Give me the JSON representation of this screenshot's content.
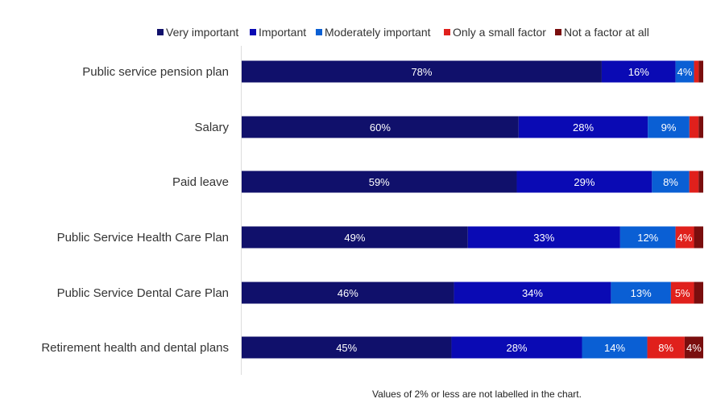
{
  "chart_data": {
    "type": "bar",
    "orientation": "horizontal",
    "stacked": true,
    "unit": "%",
    "xlim": [
      0,
      100
    ],
    "grid": false,
    "legend_position": "top",
    "categories": [
      "Public service pension plan",
      "Salary",
      "Paid leave",
      "Public Service Health Care Plan",
      "Public Service Dental Care Plan",
      "Retirement health and dental plans"
    ],
    "series": [
      {
        "name": "Very important",
        "color": "#10106b",
        "values": [
          78,
          60,
          59,
          49,
          46,
          45
        ]
      },
      {
        "name": "Important",
        "color": "#0a0ab4",
        "values": [
          16,
          28,
          29,
          33,
          34,
          28
        ]
      },
      {
        "name": "Moderately important",
        "color": "#0a5fd4",
        "values": [
          4,
          9,
          8,
          12,
          13,
          14
        ]
      },
      {
        "name": "Only a small factor",
        "color": "#e0201c",
        "values": [
          1,
          2,
          2,
          4,
          5,
          8
        ]
      },
      {
        "name": "Not a factor at all",
        "color": "#7a0e0e",
        "values": [
          1,
          1,
          1,
          2,
          2,
          4
        ]
      }
    ],
    "label_threshold": 2,
    "annotation": "Values of 2% or less are not labelled in the chart."
  }
}
